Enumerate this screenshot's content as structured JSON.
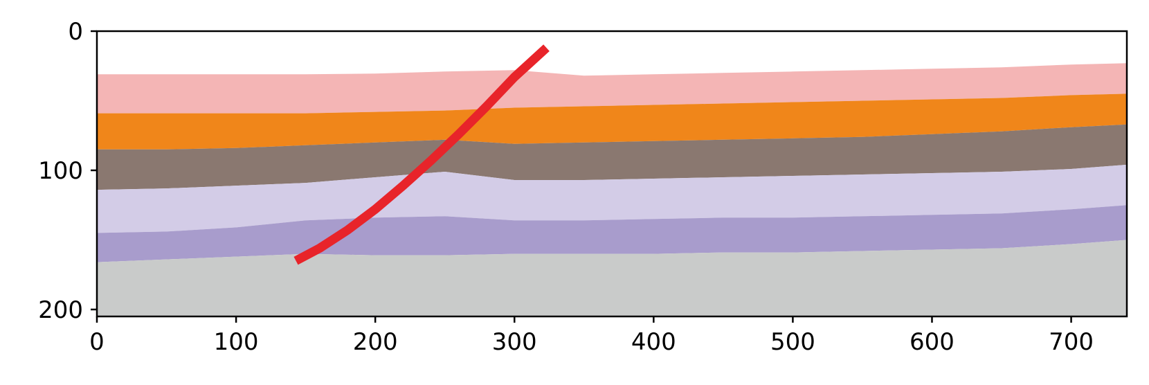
{
  "chart_data": {
    "type": "area",
    "title": "",
    "xlabel": "",
    "ylabel": "",
    "xlim": [
      0,
      740
    ],
    "ylim": [
      0,
      205
    ],
    "y_inverted": true,
    "grid": false,
    "legend": "none",
    "x_ticks": [
      "0",
      "100",
      "200",
      "300",
      "400",
      "500",
      "600",
      "700"
    ],
    "y_ticks": [
      "0",
      "100",
      "200"
    ],
    "layers": [
      {
        "color": "#f4b5b5",
        "x": [
          0,
          50,
          100,
          150,
          200,
          250,
          300,
          350,
          400,
          450,
          500,
          550,
          600,
          650,
          700,
          740
        ],
        "top": [
          31,
          31,
          31,
          31,
          30.5,
          29,
          28,
          32,
          31,
          30,
          29,
          28,
          27,
          26,
          24,
          23
        ],
        "bottom": [
          59,
          59,
          59,
          59,
          58,
          57,
          55,
          54,
          53,
          52,
          51,
          50,
          49,
          48,
          46,
          45
        ]
      },
      {
        "color": "#f0861a",
        "x": [
          0,
          50,
          100,
          150,
          200,
          250,
          300,
          350,
          400,
          450,
          500,
          550,
          600,
          650,
          700,
          740
        ],
        "top": [
          59,
          59,
          59,
          59,
          58,
          57,
          55,
          54,
          53,
          52,
          51,
          50,
          49,
          48,
          46,
          45
        ],
        "bottom": [
          85,
          85,
          84,
          82,
          80,
          78,
          81,
          80,
          79,
          78,
          77,
          76,
          74,
          72,
          69,
          67
        ]
      },
      {
        "color": "#8a7870",
        "x": [
          0,
          50,
          100,
          150,
          200,
          250,
          300,
          350,
          400,
          450,
          500,
          550,
          600,
          650,
          700,
          740
        ],
        "top": [
          85,
          85,
          84,
          82,
          80,
          78,
          81,
          80,
          79,
          78,
          77,
          76,
          74,
          72,
          69,
          67
        ],
        "bottom": [
          114,
          113,
          111,
          109,
          105,
          101,
          107,
          107,
          106,
          105,
          104,
          103,
          102,
          101,
          99,
          96
        ]
      },
      {
        "color": "#d3cce7",
        "x": [
          0,
          50,
          100,
          150,
          200,
          250,
          300,
          350,
          400,
          450,
          500,
          550,
          600,
          650,
          700,
          740
        ],
        "top": [
          114,
          113,
          111,
          109,
          105,
          101,
          107,
          107,
          106,
          105,
          104,
          103,
          102,
          101,
          99,
          96
        ],
        "bottom": [
          145,
          144,
          141,
          136,
          134,
          133,
          136,
          136,
          135,
          134,
          134,
          133,
          132,
          131,
          128,
          125
        ]
      },
      {
        "color": "#a89ccc",
        "x": [
          0,
          50,
          100,
          150,
          200,
          250,
          300,
          350,
          400,
          450,
          500,
          550,
          600,
          650,
          700,
          740
        ],
        "top": [
          145,
          144,
          141,
          136,
          134,
          133,
          136,
          136,
          135,
          134,
          134,
          133,
          132,
          131,
          128,
          125
        ],
        "bottom": [
          166,
          164,
          162,
          160,
          161,
          161,
          160,
          160,
          160,
          159,
          159,
          158,
          157,
          156,
          153,
          150
        ]
      },
      {
        "color": "#c9cbca",
        "x": [
          0,
          50,
          100,
          150,
          200,
          250,
          300,
          350,
          400,
          450,
          500,
          550,
          600,
          650,
          700,
          740
        ],
        "top": [
          166,
          164,
          162,
          160,
          161,
          161,
          160,
          160,
          160,
          159,
          159,
          158,
          157,
          156,
          153,
          150
        ],
        "bottom": [
          205,
          205,
          205,
          205,
          205,
          205,
          205,
          205,
          205,
          205,
          205,
          205,
          205,
          205,
          205,
          205
        ]
      }
    ],
    "series": [
      {
        "color": "#e8242a",
        "x": [
          143,
          160,
          180,
          200,
          220,
          240,
          260,
          280,
          300,
          323
        ],
        "y": [
          165,
          156,
          143,
          128,
          111,
          93,
          74,
          54,
          33,
          12
        ]
      }
    ]
  }
}
